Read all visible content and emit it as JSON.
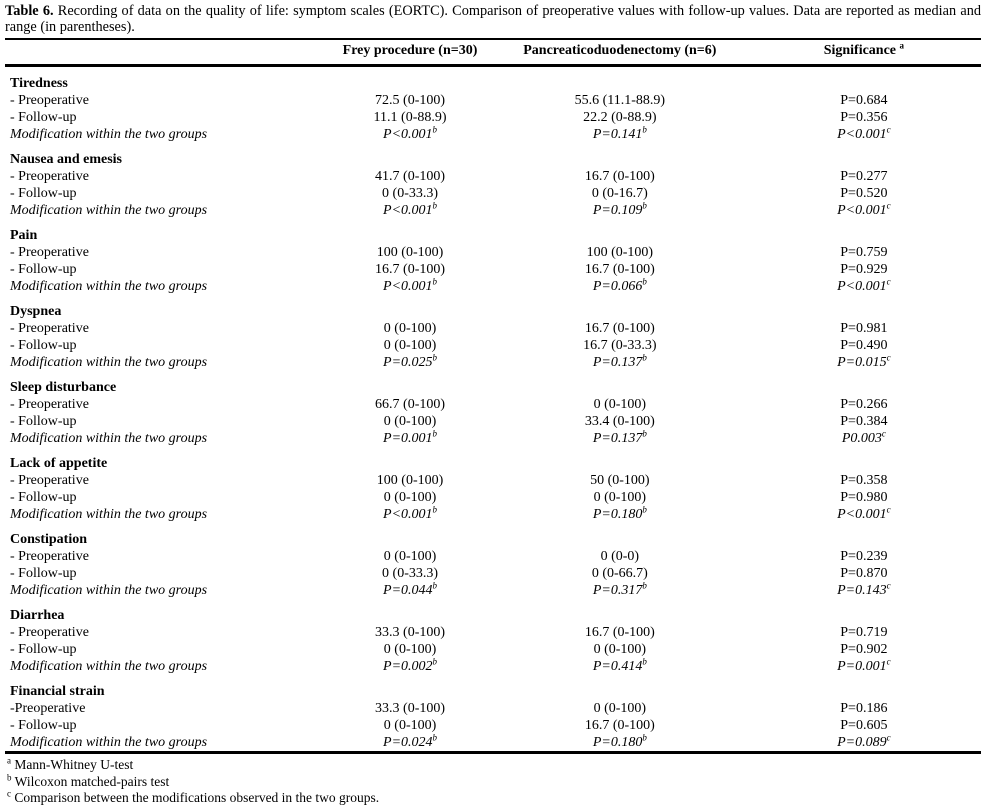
{
  "caption": {
    "label": "Table 6.",
    "text": " Recording of data on the quality of life: symptom scales (EORTC). Comparison of preoperative values with follow-up values. Data are reported as median and range (in parentheses)."
  },
  "columns": [
    {
      "label": "Frey procedure (n=30)",
      "sup": ""
    },
    {
      "label": "Pancreaticoduodenectomy (n=6)",
      "sup": ""
    },
    {
      "label": "Significance",
      "sup": "a"
    }
  ],
  "sections": [
    {
      "name": "Tiredness",
      "rows": [
        {
          "label": "- Preoperative",
          "italic": false,
          "values": [
            {
              "text": "72.5 (0-100)",
              "sup": ""
            },
            {
              "text": "55.6 (11.1-88.9)",
              "sup": ""
            },
            {
              "text": "P=0.684",
              "sup": ""
            }
          ]
        },
        {
          "label": "- Follow-up",
          "italic": false,
          "values": [
            {
              "text": "11.1 (0-88.9)",
              "sup": ""
            },
            {
              "text": "22.2 (0-88.9)",
              "sup": ""
            },
            {
              "text": "P=0.356",
              "sup": ""
            }
          ]
        },
        {
          "label": "Modification within the two groups",
          "italic": true,
          "values": [
            {
              "text": "P<0.001",
              "sup": "b"
            },
            {
              "text": "P=0.141",
              "sup": "b"
            },
            {
              "text": "P<0.001",
              "sup": "c"
            }
          ]
        }
      ]
    },
    {
      "name": "Nausea and emesis",
      "rows": [
        {
          "label": "- Preoperative",
          "italic": false,
          "values": [
            {
              "text": "41.7 (0-100)",
              "sup": ""
            },
            {
              "text": "16.7 (0-100)",
              "sup": ""
            },
            {
              "text": "P=0.277",
              "sup": ""
            }
          ]
        },
        {
          "label": "- Follow-up",
          "italic": false,
          "values": [
            {
              "text": "0 (0-33.3)",
              "sup": ""
            },
            {
              "text": "0 (0-16.7)",
              "sup": ""
            },
            {
              "text": "P=0.520",
              "sup": ""
            }
          ]
        },
        {
          "label": "Modification within the two groups",
          "italic": true,
          "values": [
            {
              "text": "P<0.001",
              "sup": "b"
            },
            {
              "text": "P=0.109",
              "sup": "b"
            },
            {
              "text": "P<0.001",
              "sup": "c"
            }
          ]
        }
      ]
    },
    {
      "name": "Pain",
      "rows": [
        {
          "label": "- Preoperative",
          "italic": false,
          "values": [
            {
              "text": "100 (0-100)",
              "sup": ""
            },
            {
              "text": "100 (0-100)",
              "sup": ""
            },
            {
              "text": "P=0.759",
              "sup": ""
            }
          ]
        },
        {
          "label": "- Follow-up",
          "italic": false,
          "values": [
            {
              "text": "16.7 (0-100)",
              "sup": ""
            },
            {
              "text": "16.7 (0-100)",
              "sup": ""
            },
            {
              "text": "P=0.929",
              "sup": ""
            }
          ]
        },
        {
          "label": "Modification within the two groups",
          "italic": true,
          "values": [
            {
              "text": "P<0.001",
              "sup": "b"
            },
            {
              "text": "P=0.066",
              "sup": "b"
            },
            {
              "text": "P<0.001",
              "sup": "c"
            }
          ]
        }
      ]
    },
    {
      "name": "Dyspnea",
      "rows": [
        {
          "label": "- Preoperative",
          "italic": false,
          "values": [
            {
              "text": "0 (0-100)",
              "sup": ""
            },
            {
              "text": "16.7 (0-100)",
              "sup": ""
            },
            {
              "text": "P=0.981",
              "sup": ""
            }
          ]
        },
        {
          "label": "- Follow-up",
          "italic": false,
          "values": [
            {
              "text": "0 (0-100)",
              "sup": ""
            },
            {
              "text": "16.7 (0-33.3)",
              "sup": ""
            },
            {
              "text": "P=0.490",
              "sup": ""
            }
          ]
        },
        {
          "label": "Modification within the two groups",
          "italic": true,
          "values": [
            {
              "text": "P=0.025",
              "sup": "b"
            },
            {
              "text": "P=0.137",
              "sup": "b"
            },
            {
              "text": "P=0.015",
              "sup": "c"
            }
          ]
        }
      ]
    },
    {
      "name": "Sleep disturbance",
      "rows": [
        {
          "label": "- Preoperative",
          "italic": false,
          "values": [
            {
              "text": "66.7 (0-100)",
              "sup": ""
            },
            {
              "text": "0 (0-100)",
              "sup": ""
            },
            {
              "text": "P=0.266",
              "sup": ""
            }
          ]
        },
        {
          "label": "- Follow-up",
          "italic": false,
          "values": [
            {
              "text": "0 (0-100)",
              "sup": ""
            },
            {
              "text": "33.4 (0-100)",
              "sup": ""
            },
            {
              "text": "P=0.384",
              "sup": ""
            }
          ]
        },
        {
          "label": "Modification within the two groups",
          "italic": true,
          "values": [
            {
              "text": "P=0.001",
              "sup": "b"
            },
            {
              "text": "P=0.137",
              "sup": "b"
            },
            {
              "text": "P0.003",
              "sup": "c"
            }
          ]
        }
      ]
    },
    {
      "name": "Lack of appetite",
      "rows": [
        {
          "label": "- Preoperative",
          "italic": false,
          "values": [
            {
              "text": "100 (0-100)",
              "sup": ""
            },
            {
              "text": "50 (0-100)",
              "sup": ""
            },
            {
              "text": "P=0.358",
              "sup": ""
            }
          ]
        },
        {
          "label": "- Follow-up",
          "italic": false,
          "values": [
            {
              "text": "0 (0-100)",
              "sup": ""
            },
            {
              "text": "0 (0-100)",
              "sup": ""
            },
            {
              "text": "P=0.980",
              "sup": ""
            }
          ]
        },
        {
          "label": "Modification within the two groups",
          "italic": true,
          "values": [
            {
              "text": "P<0.001",
              "sup": "b"
            },
            {
              "text": "P=0.180",
              "sup": "b"
            },
            {
              "text": "P<0.001",
              "sup": "c"
            }
          ]
        }
      ]
    },
    {
      "name": "Constipation",
      "rows": [
        {
          "label": "- Preoperative",
          "italic": false,
          "values": [
            {
              "text": "0 (0-100)",
              "sup": ""
            },
            {
              "text": "0 (0-0)",
              "sup": ""
            },
            {
              "text": "P=0.239",
              "sup": ""
            }
          ]
        },
        {
          "label": "- Follow-up",
          "italic": false,
          "values": [
            {
              "text": "0 (0-33.3)",
              "sup": ""
            },
            {
              "text": "0 (0-66.7)",
              "sup": ""
            },
            {
              "text": "P=0.870",
              "sup": ""
            }
          ]
        },
        {
          "label": "Modification within the two groups",
          "italic": true,
          "values": [
            {
              "text": "P=0.044",
              "sup": "b"
            },
            {
              "text": "P=0.317",
              "sup": "b"
            },
            {
              "text": "P=0.143",
              "sup": "c"
            }
          ]
        }
      ]
    },
    {
      "name": "Diarrhea",
      "rows": [
        {
          "label": "- Preoperative",
          "italic": false,
          "values": [
            {
              "text": "33.3 (0-100)",
              "sup": ""
            },
            {
              "text": "16.7 (0-100)",
              "sup": ""
            },
            {
              "text": "P=0.719",
              "sup": ""
            }
          ]
        },
        {
          "label": "- Follow-up",
          "italic": false,
          "values": [
            {
              "text": "0 (0-100)",
              "sup": ""
            },
            {
              "text": "0 (0-100)",
              "sup": ""
            },
            {
              "text": "P=0.902",
              "sup": ""
            }
          ]
        },
        {
          "label": "Modification within the two groups",
          "italic": true,
          "values": [
            {
              "text": "P=0.002",
              "sup": "b"
            },
            {
              "text": "P=0.414",
              "sup": "b"
            },
            {
              "text": "P=0.001",
              "sup": "c"
            }
          ]
        }
      ]
    },
    {
      "name": "Financial strain",
      "rows": [
        {
          "label": "-Preoperative",
          "italic": false,
          "values": [
            {
              "text": "33.3 (0-100)",
              "sup": ""
            },
            {
              "text": "0 (0-100)",
              "sup": ""
            },
            {
              "text": "P=0.186",
              "sup": ""
            }
          ]
        },
        {
          "label": "- Follow-up",
          "italic": false,
          "values": [
            {
              "text": "0 (0-100)",
              "sup": ""
            },
            {
              "text": "16.7 (0-100)",
              "sup": ""
            },
            {
              "text": "P=0.605",
              "sup": ""
            }
          ]
        },
        {
          "label": "Modification within the two groups",
          "italic": true,
          "values": [
            {
              "text": "P=0.024",
              "sup": "b"
            },
            {
              "text": "P=0.180",
              "sup": "b"
            },
            {
              "text": "P=0.089",
              "sup": "c"
            }
          ]
        }
      ]
    }
  ],
  "footnotes": [
    {
      "sup": "a",
      "text": "Mann-Whitney U-test"
    },
    {
      "sup": "b",
      "text": "Wilcoxon matched-pairs test"
    },
    {
      "sup": "c",
      "text": "Comparison between the modifications observed in the two groups."
    }
  ]
}
